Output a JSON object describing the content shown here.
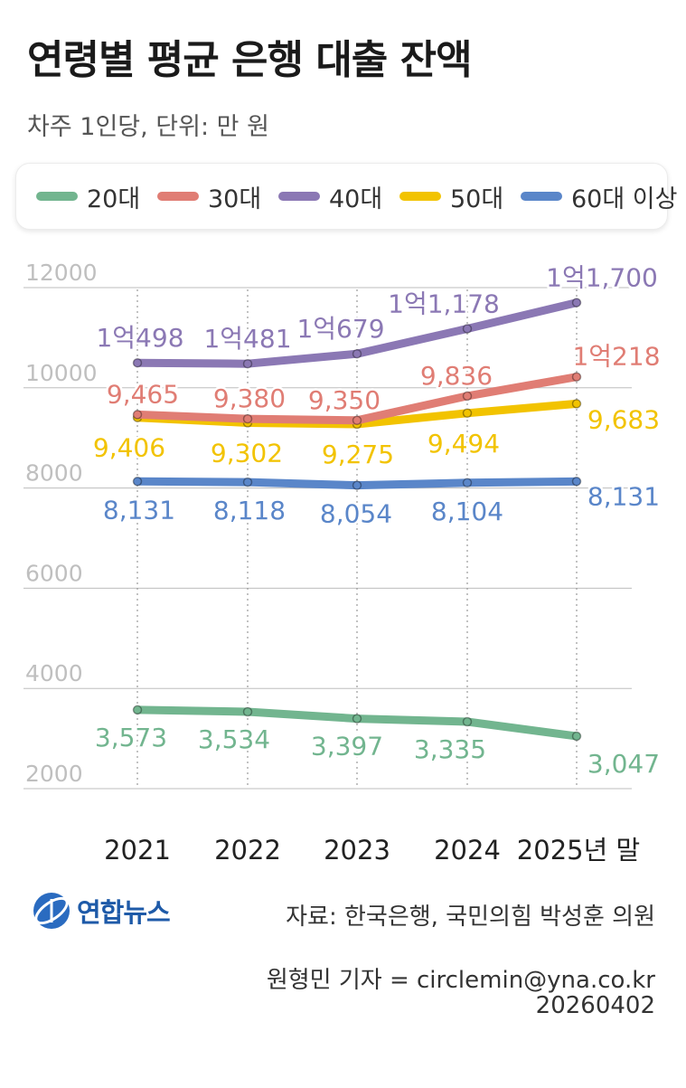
{
  "title": "연령별 평균 은행 대출 잔액",
  "subtitle": "차주 1인당, 단위: 만 원",
  "chart_data": {
    "type": "line",
    "x": [
      "2021",
      "2022",
      "2023",
      "2024",
      "2025년 말"
    ],
    "ylim": [
      2000,
      12000
    ],
    "yticks": [
      2000,
      4000,
      6000,
      8000,
      10000,
      12000
    ],
    "ytick_labels": [
      "2000",
      "4000",
      "6000",
      "8000",
      "10000",
      "12000"
    ],
    "grid": true,
    "legend_position": "top",
    "series": [
      {
        "name": "20대",
        "color": "#72b58f",
        "values": [
          3573,
          3534,
          3397,
          3335,
          3047
        ],
        "labels": [
          "3,573",
          "3,534",
          "3,397",
          "3,335",
          "3,047"
        ]
      },
      {
        "name": "30대",
        "color": "#e07d74",
        "values": [
          9465,
          9380,
          9350,
          9836,
          10218
        ],
        "labels": [
          "9,465",
          "9,380",
          "9,350",
          "9,836",
          "1억218"
        ]
      },
      {
        "name": "40대",
        "color": "#8b78b4",
        "values": [
          10498,
          10481,
          10679,
          11178,
          11700
        ],
        "labels": [
          "1억498",
          "1억481",
          "1억679",
          "1억1,178",
          "1억1,700"
        ]
      },
      {
        "name": "50대",
        "color": "#f2c300",
        "values": [
          9406,
          9302,
          9275,
          9494,
          9683
        ],
        "labels": [
          "9,406",
          "9,302",
          "9,275",
          "9,494",
          "9,683"
        ]
      },
      {
        "name": "60대 이상",
        "color": "#5a86c9",
        "values": [
          8131,
          8118,
          8054,
          8104,
          8131
        ],
        "labels": [
          "8,131",
          "8,118",
          "8,054",
          "8,104",
          "8,131"
        ]
      }
    ]
  },
  "footer": {
    "logo_text": "연합뉴스",
    "source": "자료: 한국은행, 국민의힘 박성훈 의원",
    "reporter": "원형민 기자 = circlemin@yna.co.kr",
    "date": "20260402"
  }
}
